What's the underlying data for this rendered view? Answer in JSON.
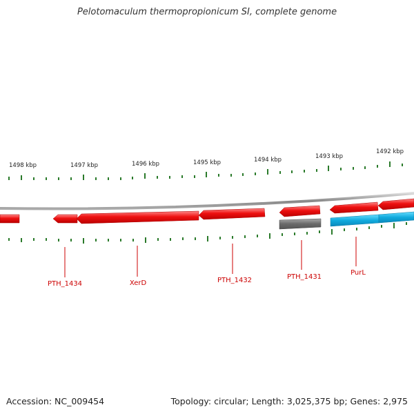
{
  "title": "Pelotomaculum thermopropionicum SI, complete genome",
  "footer": {
    "accession": "Accession: NC_009454",
    "summary": "Topology: circular; Length: 3,025,375 bp; Genes: 2,975"
  },
  "scale": {
    "labels": [
      "1498 kbp",
      "1497 kbp",
      "1496 kbp",
      "1495 kbp",
      "1494 kbp",
      "1493 kbp",
      "1492 kbp"
    ]
  },
  "genes": {
    "labels": [
      "PTH_1434",
      "XerD",
      "PTH_1432",
      "PTH_1431",
      "PurL"
    ]
  },
  "colors": {
    "gene_red": "#ee1111",
    "gene_gray": "#6a6a6a",
    "gene_blue": "#11aadd",
    "backbone": "#888888",
    "tick": "#2a7a2a",
    "label_red": "#cc0000"
  }
}
